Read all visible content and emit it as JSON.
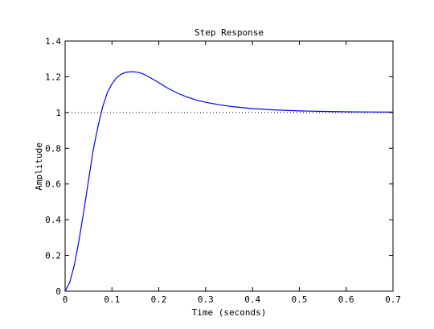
{
  "chart_data": {
    "type": "line",
    "title": "Step Response",
    "xlabel": "Time (seconds)",
    "ylabel": "Amplitude",
    "xlim": [
      0,
      0.7
    ],
    "ylim": [
      0,
      1.4
    ],
    "xticks": [
      0,
      0.1,
      0.2,
      0.3,
      0.4,
      0.5,
      0.6,
      0.7
    ],
    "xtick_labels": [
      "0",
      "0.1",
      "0.2",
      "0.3",
      "0.4",
      "0.5",
      "0.6",
      "0.7"
    ],
    "yticks": [
      0,
      0.2,
      0.4,
      0.6,
      0.8,
      1,
      1.2,
      1.4
    ],
    "ytick_labels": [
      "0",
      "0.2",
      "0.4",
      "0.6",
      "0.8",
      "1",
      "1.2",
      "1.4"
    ],
    "grid": false,
    "reference_line": {
      "y": 1,
      "style": "dotted",
      "color": "#000000"
    },
    "series": [
      {
        "color": "#0000ff",
        "x": [
          0,
          0.01,
          0.02,
          0.03,
          0.04,
          0.05,
          0.06,
          0.07,
          0.08,
          0.09,
          0.1,
          0.11,
          0.12,
          0.13,
          0.14,
          0.15,
          0.16,
          0.17,
          0.18,
          0.2,
          0.22,
          0.24,
          0.26,
          0.28,
          0.3,
          0.33,
          0.36,
          0.4,
          0.45,
          0.5,
          0.55,
          0.6,
          0.65,
          0.7
        ],
        "y": [
          0,
          0.05,
          0.15,
          0.29,
          0.45,
          0.62,
          0.79,
          0.92,
          1.03,
          1.11,
          1.16,
          1.195,
          1.215,
          1.225,
          1.228,
          1.227,
          1.222,
          1.212,
          1.198,
          1.167,
          1.135,
          1.108,
          1.087,
          1.07,
          1.057,
          1.043,
          1.032,
          1.022,
          1.014,
          1.009,
          1.006,
          1.004,
          1.003,
          1.002
        ]
      }
    ]
  }
}
